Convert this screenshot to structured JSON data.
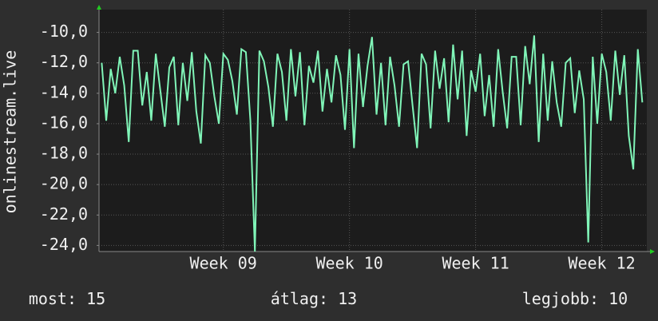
{
  "chart_data": {
    "type": "line",
    "y_label": "onlinestream.live",
    "xlim": [
      -6.9,
      23.5
    ],
    "xticks": [
      {
        "value": 0,
        "label": "Week 09"
      },
      {
        "value": 7,
        "label": "Week 10"
      },
      {
        "value": 14,
        "label": "Week 11"
      },
      {
        "value": 21,
        "label": "Week 12"
      }
    ],
    "ylim": [
      -24.4,
      -8.5
    ],
    "yticks": [
      {
        "value": -24,
        "label": "-24,0"
      },
      {
        "value": -22,
        "label": "-22,0"
      },
      {
        "value": -20,
        "label": "-20,0"
      },
      {
        "value": -18,
        "label": "-18,0"
      },
      {
        "value": -16,
        "label": "-16,0"
      },
      {
        "value": -14,
        "label": "-14,0"
      },
      {
        "value": -12,
        "label": "-12,0"
      },
      {
        "value": -10,
        "label": "-10,0"
      }
    ],
    "grid": true,
    "series": [
      {
        "color": "#80f5b8",
        "x": [
          -6.75,
          -6.5,
          -6.25,
          -6,
          -5.75,
          -5.5,
          -5.25,
          -5,
          -4.75,
          -4.5,
          -4.25,
          -4,
          -3.75,
          -3.5,
          -3.25,
          -3,
          -2.75,
          -2.5,
          -2.25,
          -2,
          -1.75,
          -1.5,
          -1.25,
          -1,
          -0.75,
          -0.5,
          -0.25,
          0,
          0.25,
          0.5,
          0.75,
          1,
          1.25,
          1.5,
          1.75,
          2,
          2.25,
          2.5,
          2.75,
          3,
          3.25,
          3.5,
          3.75,
          4,
          4.25,
          4.5,
          4.75,
          5,
          5.25,
          5.5,
          5.75,
          6,
          6.25,
          6.5,
          6.75,
          7,
          7.25,
          7.5,
          7.75,
          8,
          8.25,
          8.5,
          8.75,
          9,
          9.25,
          9.5,
          9.75,
          10,
          10.25,
          10.5,
          10.75,
          11,
          11.25,
          11.5,
          11.75,
          12,
          12.25,
          12.5,
          12.75,
          13,
          13.25,
          13.5,
          13.75,
          14,
          14.25,
          14.5,
          14.75,
          15,
          15.25,
          15.5,
          15.75,
          16,
          16.25,
          16.5,
          16.75,
          17,
          17.25,
          17.5,
          17.75,
          18,
          18.25,
          18.5,
          18.75,
          19,
          19.25,
          19.5,
          19.75,
          20,
          20.25,
          20.5,
          20.75,
          21,
          21.25,
          21.5,
          21.75,
          22,
          22.25,
          22.5,
          22.75,
          23,
          23.25
        ],
        "values": [
          -12,
          -15.8,
          -12.4,
          -14,
          -11.6,
          -13.5,
          -17.2,
          -11.2,
          -11.2,
          -14.8,
          -12.6,
          -15.8,
          -11.4,
          -13.8,
          -16.2,
          -12.3,
          -11.6,
          -16.1,
          -12,
          -14.5,
          -11.3,
          -15.2,
          -17.3,
          -11.5,
          -12,
          -14.2,
          -16,
          -11.4,
          -11.8,
          -13.2,
          -15.4,
          -11.1,
          -11.3,
          -15.8,
          -24.4,
          -11.2,
          -11.9,
          -13.6,
          -16.2,
          -11.4,
          -12.6,
          -15.8,
          -11.1,
          -14.2,
          -11.3,
          -16.1,
          -12.2,
          -13.3,
          -11.2,
          -15.2,
          -12.4,
          -14.6,
          -11.5,
          -12.8,
          -16.4,
          -11.1,
          -17.6,
          -11.4,
          -14.9,
          -12.2,
          -10.3,
          -15.4,
          -12,
          -16.1,
          -11.6,
          -13.5,
          -16.2,
          -12.1,
          -11.9,
          -14.8,
          -17.6,
          -11.4,
          -12.1,
          -16.3,
          -11.2,
          -13.7,
          -11.7,
          -15.9,
          -10.8,
          -14.4,
          -11.2,
          -16.8,
          -12.5,
          -13.9,
          -11.4,
          -15.5,
          -12.8,
          -16.2,
          -11.1,
          -13.9,
          -16.3,
          -11.6,
          -11.6,
          -16.1,
          -10.9,
          -13.4,
          -10.2,
          -17.2,
          -11.4,
          -15.8,
          -11.9,
          -14.6,
          -16.2,
          -12,
          -11.7,
          -15.3,
          -12.5,
          -14.4,
          -23.8,
          -11.6,
          -16,
          -11.4,
          -12.6,
          -15.8,
          -11.2,
          -14.1,
          -11.5,
          -16.8,
          -19,
          -11.1,
          -14.6
        ]
      }
    ]
  },
  "stats": [
    {
      "label": "most:",
      "value": 15
    },
    {
      "label": "átlag:",
      "value": 13
    },
    {
      "label": "legjobb:",
      "value": 10
    }
  ]
}
